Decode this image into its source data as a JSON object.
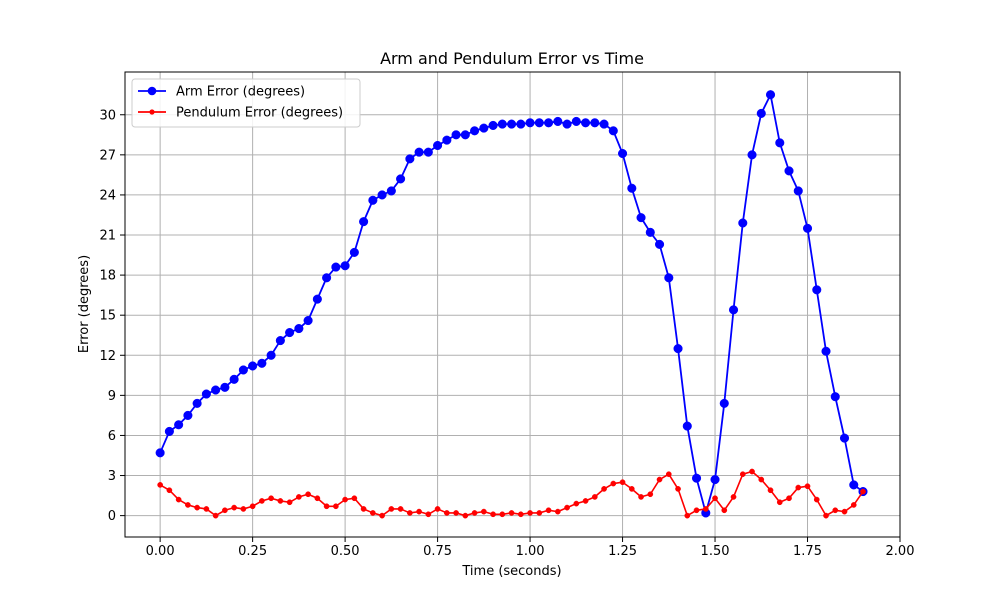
{
  "chart_data": {
    "type": "line",
    "title": "Arm and Pendulum Error vs Time",
    "xlabel": "Time (seconds)",
    "ylabel": "Error (degrees)",
    "xlim": [
      -0.095,
      2.0
    ],
    "ylim": [
      -1.6,
      33.2
    ],
    "xticks": [
      0.0,
      0.25,
      0.5,
      0.75,
      1.0,
      1.25,
      1.5,
      1.75,
      2.0
    ],
    "xtick_labels": [
      "0.00",
      "0.25",
      "0.50",
      "0.75",
      "1.00",
      "1.25",
      "1.50",
      "1.75",
      "2.00"
    ],
    "yticks": [
      0,
      3,
      6,
      9,
      12,
      15,
      18,
      21,
      24,
      27,
      30
    ],
    "ytick_labels": [
      "0",
      "3",
      "6",
      "9",
      "12",
      "15",
      "18",
      "21",
      "24",
      "27",
      "30"
    ],
    "grid": true,
    "legend_position": "top-left",
    "x": [
      0.0,
      0.025,
      0.05,
      0.075,
      0.1,
      0.125,
      0.15,
      0.175,
      0.2,
      0.225,
      0.25,
      0.275,
      0.3,
      0.325,
      0.35,
      0.375,
      0.4,
      0.425,
      0.45,
      0.475,
      0.5,
      0.525,
      0.55,
      0.575,
      0.6,
      0.625,
      0.65,
      0.675,
      0.7,
      0.725,
      0.75,
      0.775,
      0.8,
      0.825,
      0.85,
      0.875,
      0.9,
      0.925,
      0.95,
      0.975,
      1.0,
      1.025,
      1.05,
      1.075,
      1.1,
      1.125,
      1.15,
      1.175,
      1.2,
      1.225,
      1.25,
      1.275,
      1.3,
      1.325,
      1.35,
      1.375,
      1.4,
      1.425,
      1.45,
      1.475,
      1.5,
      1.525,
      1.55,
      1.575,
      1.6,
      1.625,
      1.65,
      1.675,
      1.7,
      1.725,
      1.75,
      1.775,
      1.8,
      1.825,
      1.85,
      1.875,
      1.9
    ],
    "series": [
      {
        "name": "Arm Error (degrees)",
        "color": "#0000ff",
        "marker": "circle-large",
        "values": [
          4.7,
          6.3,
          6.8,
          7.5,
          8.4,
          9.1,
          9.4,
          9.6,
          10.2,
          10.9,
          11.2,
          11.4,
          12.0,
          13.1,
          13.7,
          14.0,
          14.6,
          16.2,
          17.8,
          18.6,
          18.7,
          19.7,
          22.0,
          23.6,
          24.0,
          24.3,
          25.2,
          26.7,
          27.2,
          27.2,
          27.7,
          28.1,
          28.5,
          28.5,
          28.8,
          29.0,
          29.2,
          29.3,
          29.3,
          29.3,
          29.4,
          29.4,
          29.4,
          29.5,
          29.3,
          29.5,
          29.4,
          29.4,
          29.3,
          28.8,
          27.1,
          24.5,
          22.3,
          21.2,
          20.3,
          17.8,
          12.5,
          6.7,
          2.8,
          0.2,
          2.7,
          8.4,
          15.4,
          21.9,
          27.0,
          30.1,
          31.5,
          27.9,
          25.8,
          24.3,
          21.5,
          16.9,
          12.3,
          8.9,
          5.8,
          2.3,
          1.8
        ]
      },
      {
        "name": "Pendulum Error (degrees)",
        "color": "#ff0000",
        "marker": "circle-small",
        "values": [
          2.3,
          1.9,
          1.2,
          0.8,
          0.6,
          0.5,
          0.0,
          0.4,
          0.6,
          0.5,
          0.7,
          1.1,
          1.3,
          1.1,
          1.0,
          1.4,
          1.6,
          1.3,
          0.7,
          0.7,
          1.2,
          1.3,
          0.5,
          0.2,
          0.0,
          0.5,
          0.5,
          0.2,
          0.3,
          0.1,
          0.5,
          0.2,
          0.2,
          0.0,
          0.2,
          0.3,
          0.1,
          0.1,
          0.2,
          0.1,
          0.2,
          0.2,
          0.4,
          0.3,
          0.6,
          0.9,
          1.1,
          1.4,
          2.0,
          2.4,
          2.5,
          2.0,
          1.4,
          1.6,
          2.7,
          3.1,
          2.0,
          0.0,
          0.4,
          0.5,
          1.3,
          0.4,
          1.4,
          3.1,
          3.3,
          2.7,
          1.9,
          1.0,
          1.3,
          2.1,
          2.2,
          1.2,
          0.0,
          0.4,
          0.3,
          0.8,
          1.8
        ]
      }
    ]
  }
}
